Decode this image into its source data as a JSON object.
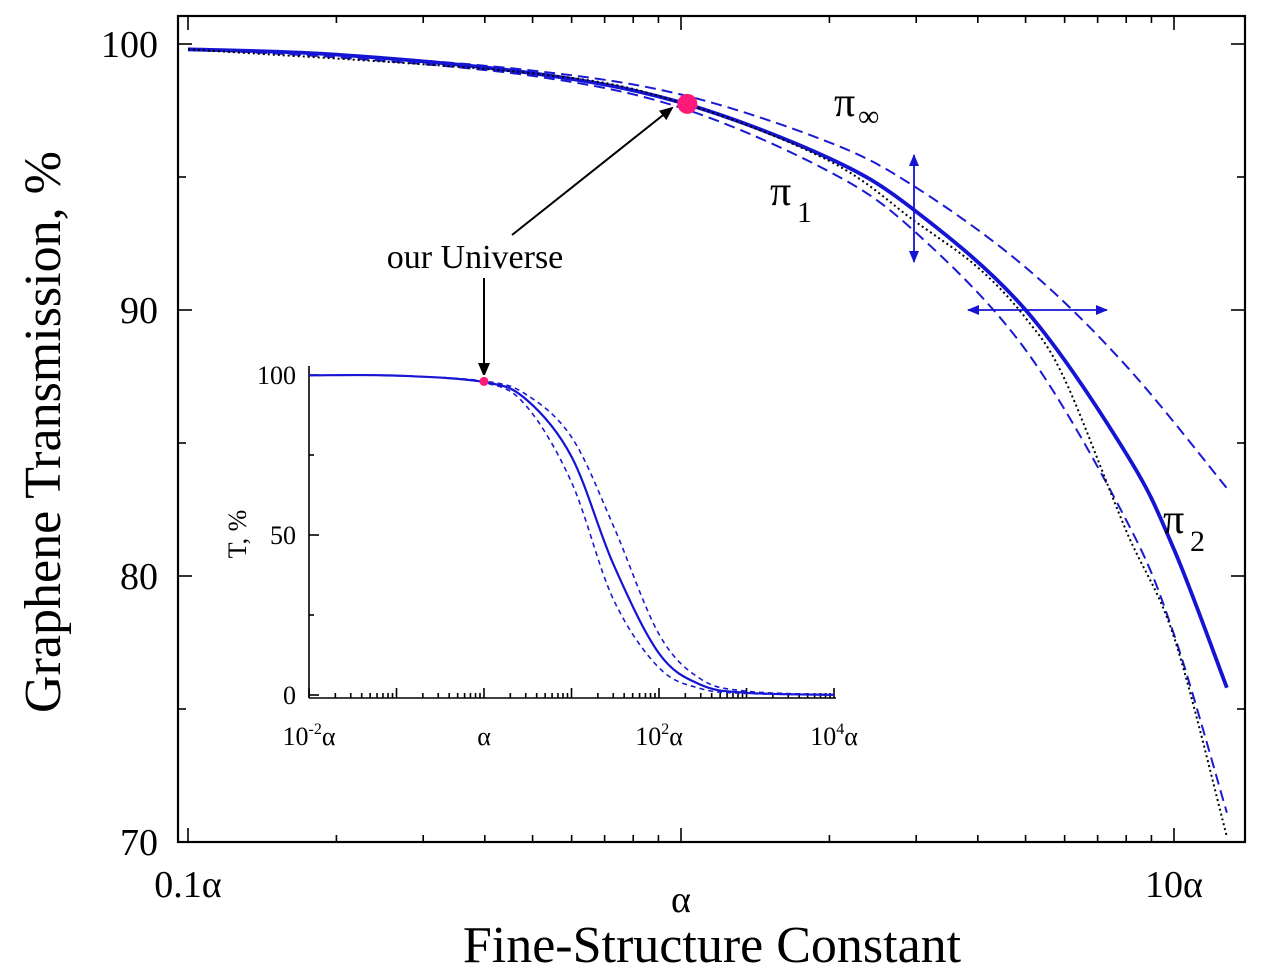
{
  "chart_data": [
    {
      "type": "line",
      "name_role": "main",
      "xlabel": "Fine-Structure Constant",
      "ylabel": "Graphene Transmission, %",
      "x_scale": "log",
      "xlim_alpha": [
        0.1,
        13
      ],
      "ylim": [
        70,
        100.5
      ],
      "x_tick_labels": [
        {
          "x": 0.1,
          "label": "0.1α"
        },
        {
          "x": 1,
          "label": "α"
        },
        {
          "x": 10,
          "label": "10α"
        }
      ],
      "y_tick_labels": [
        {
          "y": 70,
          "label": "70"
        },
        {
          "y": 80,
          "label": "80"
        },
        {
          "y": 90,
          "label": "90"
        },
        {
          "y": 100,
          "label": "100"
        }
      ],
      "series": [
        {
          "name": "π∞",
          "style": "dashed",
          "x": [
            0.1,
            0.2,
            0.5,
            1.0,
            2.0,
            3.0,
            5.0,
            8.0,
            12.8
          ],
          "y": [
            99.8,
            99.6,
            99.0,
            98.1,
            96.3,
            94.6,
            91.6,
            87.9,
            83.3
          ]
        },
        {
          "name": "π1",
          "style": "dashed",
          "x": [
            0.1,
            0.2,
            0.5,
            1.0,
            2.0,
            3.0,
            5.0,
            8.0,
            10.0,
            12.8
          ],
          "y": [
            99.8,
            99.5,
            98.8,
            97.6,
            95.2,
            92.9,
            88.5,
            82.1,
            77.8,
            71.1
          ]
        },
        {
          "name": "π2",
          "style": "solid",
          "x": [
            0.1,
            0.2,
            0.5,
            1.0,
            2.0,
            3.0,
            5.0,
            8.0,
            10.0,
            12.8
          ],
          "y": [
            99.8,
            99.6,
            98.9,
            97.8,
            95.7,
            93.7,
            90.0,
            84.6,
            81.0,
            75.8
          ]
        },
        {
          "name": "",
          "style": "dotted",
          "x": [
            0.1,
            0.5,
            1.0,
            2.0,
            3.0,
            4.0,
            5.0,
            6.0,
            8.0,
            10.0,
            12.8
          ],
          "y": [
            99.8,
            98.9,
            97.8,
            95.6,
            93.3,
            91.6,
            89.7,
            87.4,
            81.7,
            77.7,
            70.2
          ]
        }
      ],
      "marker": {
        "x": 1.03,
        "y": 97.75,
        "color": "#ff1a7a"
      },
      "annotations": [
        {
          "text": "our Universe"
        },
        {
          "text": "π∞",
          "base": "π",
          "sub": "∞"
        },
        {
          "text": "π1",
          "base": "π",
          "sub": "1"
        },
        {
          "text": "π2",
          "base": "π",
          "sub": "2"
        }
      ]
    },
    {
      "type": "line",
      "name_role": "inset",
      "ylabel": "T, %",
      "x_scale": "log",
      "xlim_alpha": [
        0.01,
        10000
      ],
      "ylim": [
        0,
        100
      ],
      "x_tick_labels": [
        {
          "x": 0.01,
          "label": "10",
          "exp": "-2",
          "suffix": "α"
        },
        {
          "x": 1,
          "label": "α",
          "exp": "",
          "suffix": ""
        },
        {
          "x": 100,
          "label": "10",
          "exp": "2",
          "suffix": "α"
        },
        {
          "x": 10000,
          "label": "10",
          "exp": "4",
          "suffix": "α"
        }
      ],
      "y_tick_labels": [
        {
          "y": 0,
          "label": "0"
        },
        {
          "y": 50,
          "label": "50"
        },
        {
          "y": 100,
          "label": "100"
        }
      ],
      "series": [
        {
          "name": "",
          "style": "dashed",
          "x": [
            0.01,
            0.1,
            1,
            3,
            10,
            30,
            100,
            300,
            1000,
            10000
          ],
          "y": [
            99.9,
            99.8,
            98.1,
            94.0,
            80.6,
            53.0,
            19.0,
            5.0,
            1.2,
            0.1
          ]
        },
        {
          "name": "",
          "style": "solid",
          "x": [
            0.01,
            0.1,
            1,
            3,
            10,
            30,
            100,
            300,
            1000,
            10000
          ],
          "y": [
            99.9,
            99.8,
            97.8,
            92.5,
            74.5,
            41.0,
            13.0,
            3.2,
            0.7,
            0.05
          ]
        },
        {
          "name": "",
          "style": "dashed",
          "x": [
            0.01,
            0.1,
            1,
            3,
            10,
            30,
            100,
            300,
            1000,
            10000
          ],
          "y": [
            99.9,
            99.8,
            97.6,
            90.5,
            66.5,
            30.0,
            8.5,
            2.0,
            0.5,
            0.03
          ]
        }
      ],
      "marker": {
        "x": 1,
        "y": 98,
        "color": "#ff1a7a"
      }
    }
  ]
}
